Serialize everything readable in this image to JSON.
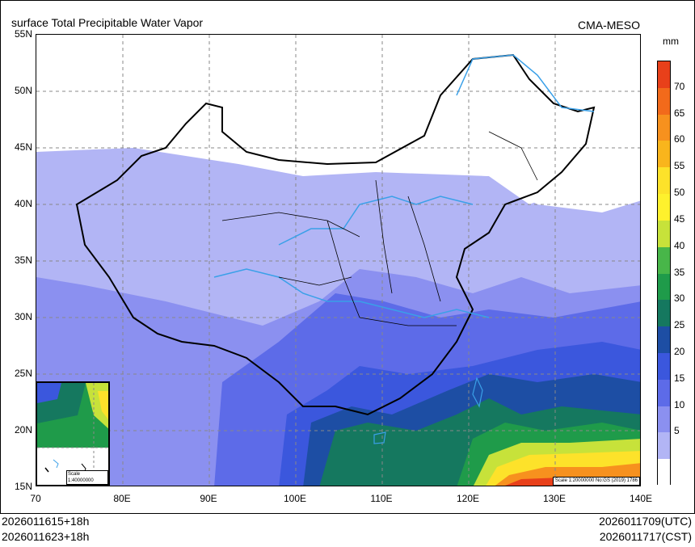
{
  "header": {
    "title": "surface Total Precipitable Water Vapor",
    "source": "CMA-MESO",
    "unit": "mm"
  },
  "map": {
    "lat_labels": [
      "55N",
      "50N",
      "45N",
      "40N",
      "35N",
      "30N",
      "25N",
      "20N",
      "15N"
    ],
    "lon_labels": [
      "70",
      "80E",
      "90E",
      "100E",
      "110E",
      "120E",
      "130E",
      "140E"
    ],
    "map_scale_text": "Scale 1:20000000 No:GS (2019) 1786",
    "inset_scale_text": "Scale 1:40000000"
  },
  "colorbar": {
    "labels": [
      "70",
      "65",
      "60",
      "55",
      "50",
      "45",
      "40",
      "35",
      "30",
      "25",
      "20",
      "15",
      "10",
      "5"
    ],
    "colors": [
      "#e8401a",
      "#f26a1b",
      "#f7911e",
      "#f9b51c",
      "#fde22a",
      "#fef12d",
      "#c7e23a",
      "#48b649",
      "#1f9b4a",
      "#15785f",
      "#1d4ea4",
      "#3b57dd",
      "#5d6be8",
      "#8b90f0",
      "#b2b5f5",
      "#ffffff"
    ]
  },
  "footer": {
    "init_utc": "2026011615+18h",
    "init_cst": "2026011623+18h",
    "valid_utc": "2026011709(UTC)",
    "valid_cst": "2026011717(CST)"
  }
}
